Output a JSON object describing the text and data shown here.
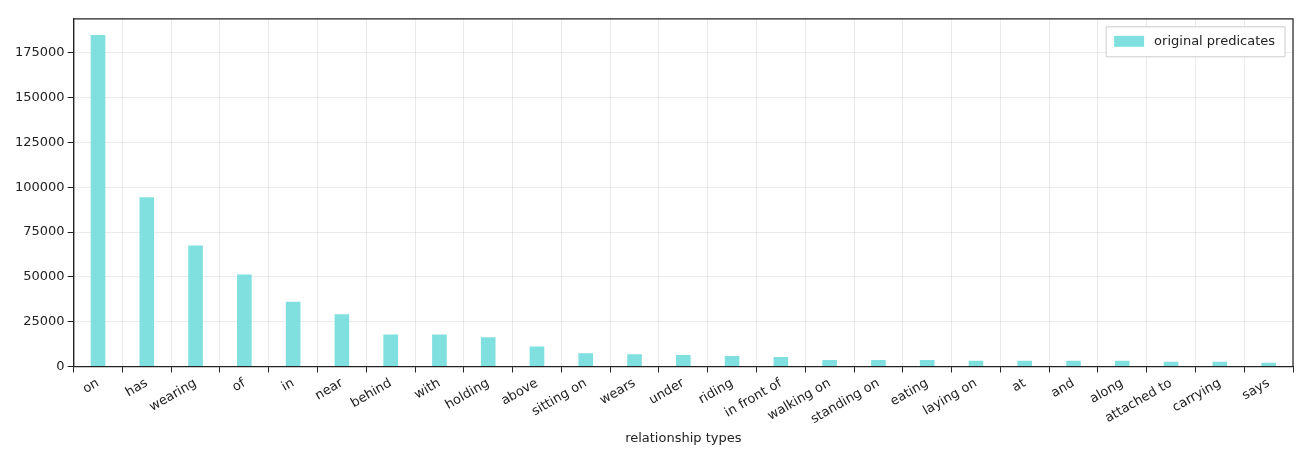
{
  "chart_data": {
    "type": "bar",
    "xlabel": "relationship types",
    "categories": [
      "on",
      "has",
      "wearing",
      "of",
      "in",
      "near",
      "behind",
      "with",
      "holding",
      "above",
      "sitting on",
      "wears",
      "under",
      "riding",
      "in front of",
      "walking on",
      "standing on",
      "eating",
      "laying on",
      "at",
      "and",
      "along",
      "attached to",
      "carrying",
      "says"
    ],
    "series": [
      {
        "name": "original predicates",
        "color": "#80dfdf",
        "values": [
          185000,
          94400,
          67500,
          51300,
          36200,
          29200,
          17900,
          17900,
          16300,
          11200,
          7400,
          6900,
          6400,
          5900,
          5300,
          3700,
          3700,
          3700,
          3200,
          3200,
          3200,
          3200,
          2700,
          2700,
          2100
        ]
      }
    ],
    "ylim": [
      0,
      194000
    ],
    "yticks": [
      0,
      25000,
      50000,
      75000,
      100000,
      125000,
      150000,
      175000
    ],
    "grid": true,
    "legend": "top right"
  }
}
